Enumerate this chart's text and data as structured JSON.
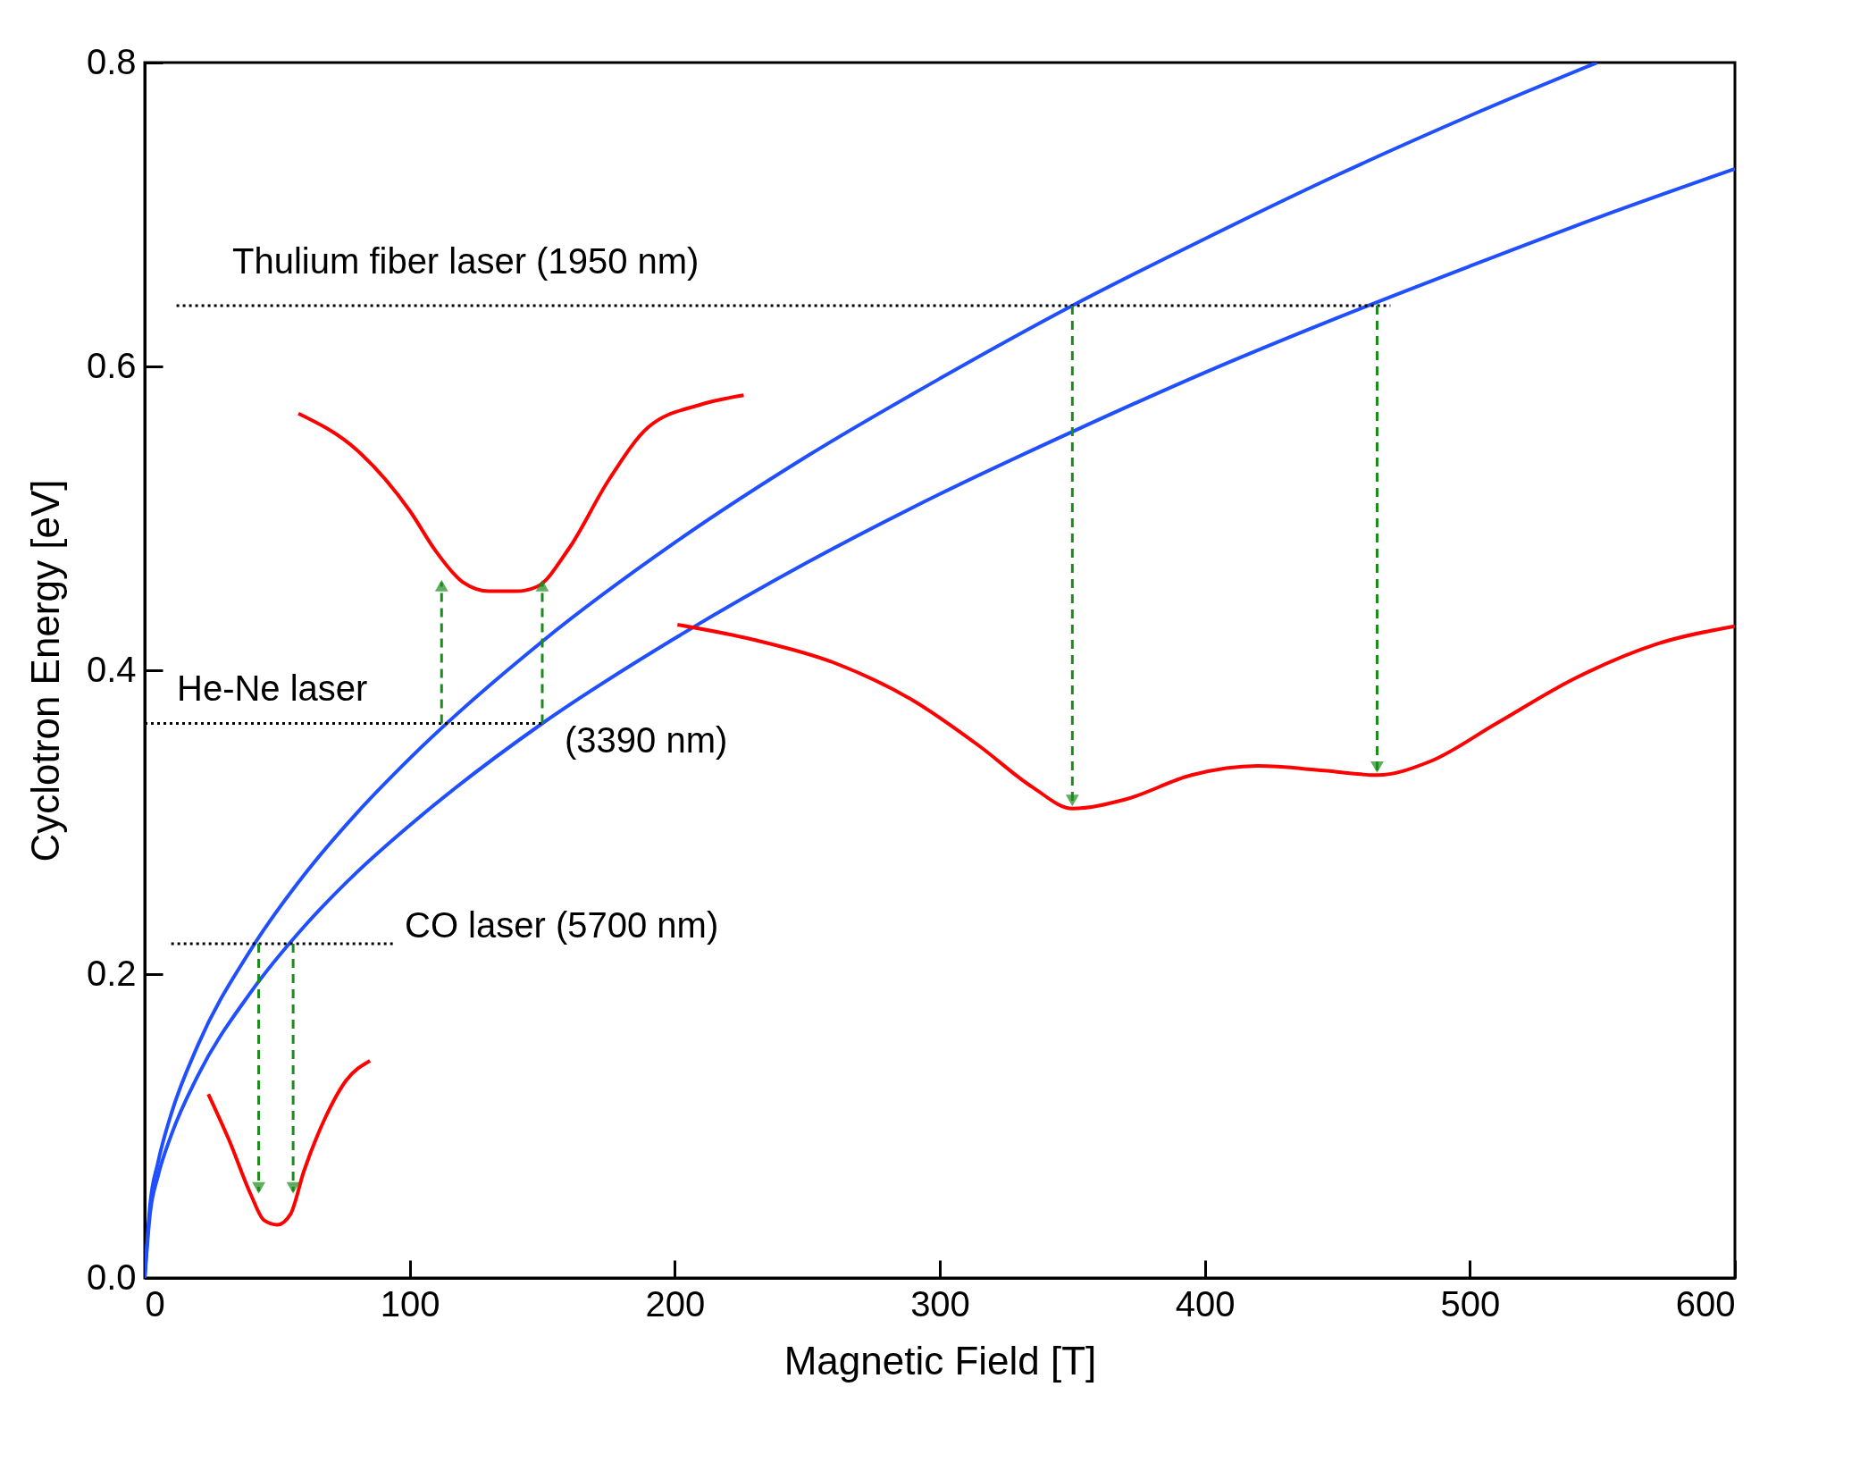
{
  "chart_data": {
    "type": "line",
    "xlabel": "Magnetic Field [T]",
    "ylabel": "Cyclotron Energy [eV]",
    "xlim": [
      0,
      600
    ],
    "ylim": [
      0,
      0.8
    ],
    "xticks": [
      0,
      100,
      200,
      300,
      400,
      500,
      600
    ],
    "yticks": [
      {
        "value": 0,
        "label": "0.0"
      },
      0.2,
      0.4,
      0.6,
      0.8
    ],
    "grid": false,
    "annotations": [
      "Thulium fiber laser (1950 nm)",
      "He-Ne laser",
      "(3390 nm)",
      "CO laser (5700 nm)"
    ],
    "series": [
      {
        "color": "#1f4fff",
        "x": [
          0,
          2,
          5,
          10,
          20,
          40,
          60,
          80,
          100,
          150,
          200,
          250,
          300,
          350,
          400,
          450,
          500,
          548
        ],
        "values": [
          0,
          0.048,
          0.076,
          0.108,
          0.153,
          0.216,
          0.265,
          0.306,
          0.342,
          0.419,
          0.484,
          0.541,
          0.592,
          0.64,
          0.684,
          0.726,
          0.765,
          0.8
        ]
      },
      {
        "color": "#1f4fff",
        "x": [
          0,
          2,
          5,
          10,
          20,
          40,
          60,
          80,
          100,
          150,
          200,
          250,
          300,
          350,
          400,
          450,
          500,
          550,
          600
        ],
        "values": [
          0,
          0.042,
          0.067,
          0.094,
          0.133,
          0.188,
          0.231,
          0.267,
          0.298,
          0.365,
          0.421,
          0.471,
          0.516,
          0.557,
          0.596,
          0.632,
          0.666,
          0.699,
          0.73
        ]
      },
      {
        "color": "#ff0000",
        "x": [
          58,
          80,
          100,
          110,
          120,
          130,
          140,
          148,
          160,
          175,
          190,
          210,
          226
        ],
        "values": [
          0.569,
          0.545,
          0.505,
          0.478,
          0.458,
          0.452,
          0.452,
          0.455,
          0.48,
          0.525,
          0.56,
          0.575,
          0.581
        ]
      },
      {
        "color": "#ff0000",
        "x": [
          201,
          230,
          260,
          290,
          315,
          335,
          350,
          370,
          395,
          420,
          445,
          465,
          485,
          510,
          540,
          570,
          600
        ],
        "values": [
          0.43,
          0.42,
          0.405,
          0.38,
          0.35,
          0.323,
          0.309,
          0.315,
          0.331,
          0.337,
          0.334,
          0.331,
          0.34,
          0.365,
          0.395,
          0.417,
          0.429
        ]
      },
      {
        "color": "#ff0000",
        "x": [
          24,
          32,
          40,
          45,
          50,
          55,
          60,
          68,
          76,
          85
        ],
        "values": [
          0.121,
          0.09,
          0.055,
          0.038,
          0.035,
          0.042,
          0.07,
          0.105,
          0.13,
          0.143
        ]
      },
      {
        "color": "#000000",
        "line_style": "dotted",
        "x": [
          12,
          470
        ],
        "values": [
          0.64,
          0.64
        ]
      },
      {
        "color": "#000000",
        "line_style": "dotted",
        "x": [
          0,
          150
        ],
        "values": [
          0.365,
          0.365
        ]
      },
      {
        "color": "#000000",
        "line_style": "dotted",
        "x": [
          10,
          94
        ],
        "values": [
          0.22,
          0.22
        ]
      },
      {
        "color": "#1a8c1a",
        "line_style": "dashed",
        "marker": "triangle",
        "x": [
          43,
          43
        ],
        "values": [
          0.22,
          0.057
        ]
      },
      {
        "color": "#1a8c1a",
        "line_style": "dashed",
        "marker": "triangle",
        "x": [
          56,
          56
        ],
        "values": [
          0.22,
          0.057
        ]
      },
      {
        "color": "#1a8c1a",
        "line_style": "dashed",
        "marker": "triangle",
        "x": [
          112,
          112
        ],
        "values": [
          0.365,
          0.458
        ]
      },
      {
        "color": "#1a8c1a",
        "line_style": "dashed",
        "marker": "triangle",
        "x": [
          150,
          150
        ],
        "values": [
          0.365,
          0.458
        ]
      },
      {
        "color": "#1a8c1a",
        "line_style": "dashed",
        "marker": "triangle",
        "x": [
          350,
          350
        ],
        "values": [
          0.64,
          0.312
        ]
      },
      {
        "color": "#1a8c1a",
        "line_style": "dashed",
        "marker": "triangle",
        "x": [
          465,
          465
        ],
        "values": [
          0.64,
          0.334
        ]
      }
    ]
  }
}
